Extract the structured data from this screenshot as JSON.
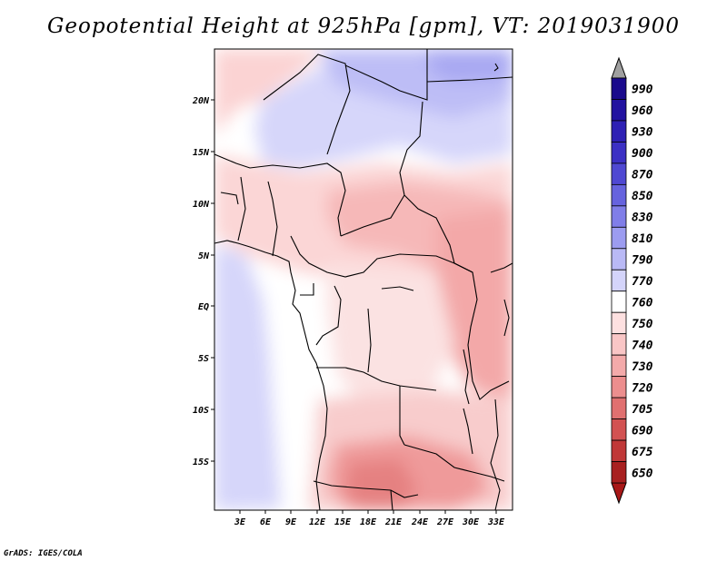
{
  "title": "Geopotential Height at 925hPa [gpm], VT: 2019031900",
  "credit": "GrADS: IGES/COLA",
  "axes": {
    "lon_ticks": [
      "3E",
      "6E",
      "9E",
      "12E",
      "15E",
      "18E",
      "21E",
      "24E",
      "27E",
      "30E",
      "33E"
    ],
    "lat_ticks": [
      "20N",
      "15N",
      "10N",
      "5N",
      "EQ",
      "5S",
      "10S",
      "15S"
    ]
  },
  "colorbar": {
    "levels": [
      "990",
      "960",
      "930",
      "900",
      "870",
      "850",
      "830",
      "810",
      "790",
      "770",
      "760",
      "750",
      "740",
      "730",
      "720",
      "705",
      "690",
      "675",
      "650"
    ],
    "colors": [
      "#1a0a8c",
      "#2212a0",
      "#2e20b4",
      "#3c30c4",
      "#4f48d2",
      "#6663de",
      "#807ee8",
      "#9c9cf0",
      "#b9b9f5",
      "#d4d4fa",
      "#ffffff",
      "#fde0e0",
      "#f9c6c6",
      "#f3aaaa",
      "#ec8e8e",
      "#e07070",
      "#d25252",
      "#c03838",
      "#a82020"
    ],
    "arrow_top_color": "#a0a0a0",
    "arrow_bottom_color": "#a81818"
  }
}
